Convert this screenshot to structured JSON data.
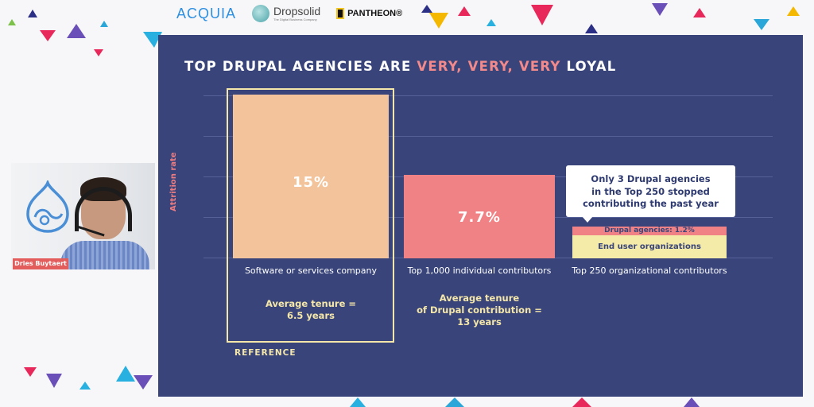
{
  "sponsors": {
    "acquia": "ACQUIA",
    "dropsolid": "Dropsolid",
    "dropsolid_tagline": "The Digital Business Company",
    "pantheon": "PANTHEON®"
  },
  "slide": {
    "title_prefix": "TOP DRUPAL AGENCIES ARE ",
    "title_highlight": "VERY, VERY, VERY",
    "title_suffix": " LOYAL",
    "y_axis_label": "Attrition rate",
    "reference_label": "REFERENCE"
  },
  "chart_data": {
    "type": "bar",
    "title": "TOP DRUPAL AGENCIES ARE VERY, VERY, VERY LOYAL",
    "ylabel": "Attrition rate",
    "categories": [
      "Software or services company",
      "Top 1,000 individual contributors",
      "Top 250 organizational contributors"
    ],
    "values": [
      15,
      7.7,
      1.2
    ],
    "value_labels": [
      "15%",
      "7.7%",
      "Drupal agencies: 1.2%"
    ],
    "stack_labels": [
      "End user organizations"
    ],
    "tenure_notes": [
      [
        "Average tenure =",
        "6.5 years"
      ],
      [
        "Average tenure",
        "of Drupal contribution =",
        "13 years"
      ]
    ],
    "callout_lines": [
      "Only 3 Drupal agencies",
      "in the Top 250 stopped",
      "contributing the past year"
    ],
    "colors": {
      "bar1": "#f3c49b",
      "bar2": "#f08285",
      "agencies": "#f08285",
      "end_users": "#f5eba8",
      "background": "#39457a"
    },
    "grid": true
  },
  "video": {
    "presenter_name": "Dries Buytaert"
  }
}
